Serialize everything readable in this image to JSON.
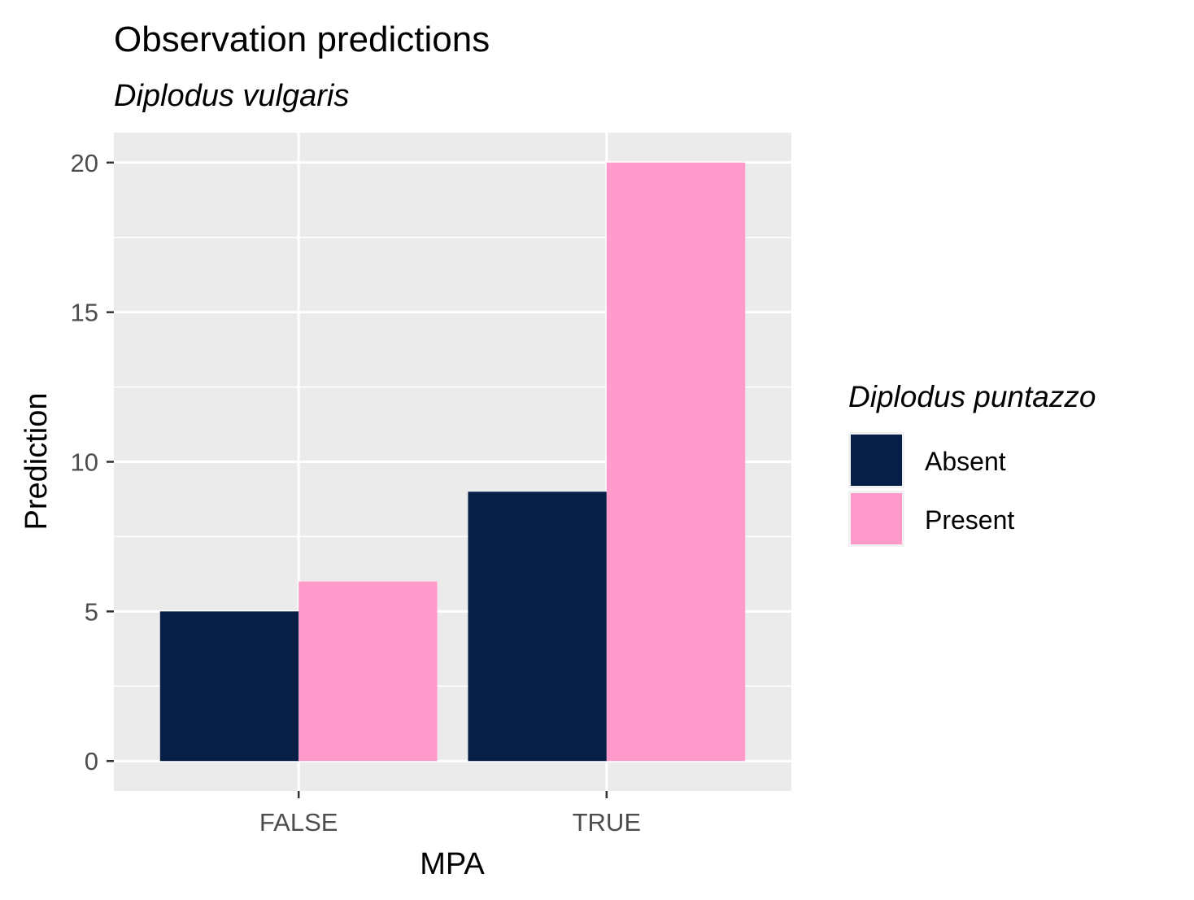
{
  "chart_data": {
    "type": "bar",
    "title": "Observation predictions",
    "subtitle": "Diplodus vulgaris",
    "xlabel": "MPA",
    "ylabel": "Prediction",
    "categories": [
      "FALSE",
      "TRUE"
    ],
    "ylim": [
      -1,
      21
    ],
    "yticks": [
      0,
      5,
      10,
      15,
      20
    ],
    "grid": true,
    "legend": {
      "title": "Diplodus puntazzo",
      "placement": "right"
    },
    "series": [
      {
        "name": "Absent",
        "values": [
          5,
          9
        ],
        "color": "#061f47"
      },
      {
        "name": "Present",
        "values": [
          6,
          20
        ],
        "color": "#ff9acb"
      }
    ],
    "colors": {
      "panel_background": "#ebebeb",
      "grid_line": "#ffffff"
    }
  }
}
